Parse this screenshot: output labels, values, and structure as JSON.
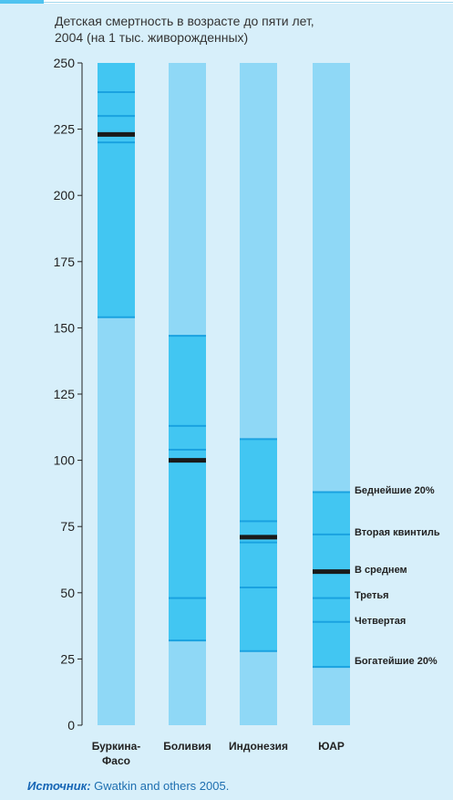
{
  "chart_data": {
    "type": "bar",
    "title": "Детская смертность в возрасте до пяти лет,",
    "subtitle": "2004 (на 1 тыс. живорожденных)",
    "ylim": [
      0,
      250
    ],
    "yticks": [
      0,
      25,
      50,
      75,
      100,
      125,
      150,
      175,
      200,
      225,
      250
    ],
    "categories": [
      [
        "Буркина-",
        "Фасо"
      ],
      [
        "Боливия"
      ],
      [
        "Индонезия"
      ],
      [
        "ЮАР"
      ]
    ],
    "series": [
      {
        "name": "Беднейшие 20%",
        "values": [
          239,
          147,
          108,
          88
        ]
      },
      {
        "name": "Вторая квинтиль",
        "values": [
          230,
          113,
          77,
          72
        ]
      },
      {
        "name": "В среднем",
        "values": [
          223,
          100,
          71,
          58
        ]
      },
      {
        "name": "Третья",
        "values": [
          220,
          104,
          69,
          48
        ]
      },
      {
        "name": "Четвертая",
        "values": [
          250,
          48,
          52,
          39
        ]
      },
      {
        "name": "Богатейшие 20%",
        "values": [
          154,
          32,
          28,
          22
        ]
      }
    ],
    "average_series": "В среднем",
    "grid": false,
    "legend": "right of last bar",
    "colors": {
      "bar_bg": "#8fd8f6",
      "range": "#42c6f2",
      "quintile_line": "#1aa2e0",
      "average_line": "#1a1a1a",
      "panel_bg": "#d7effa"
    }
  },
  "source": {
    "label": "Источник:",
    "text": " Gwatkin and others 2005."
  }
}
